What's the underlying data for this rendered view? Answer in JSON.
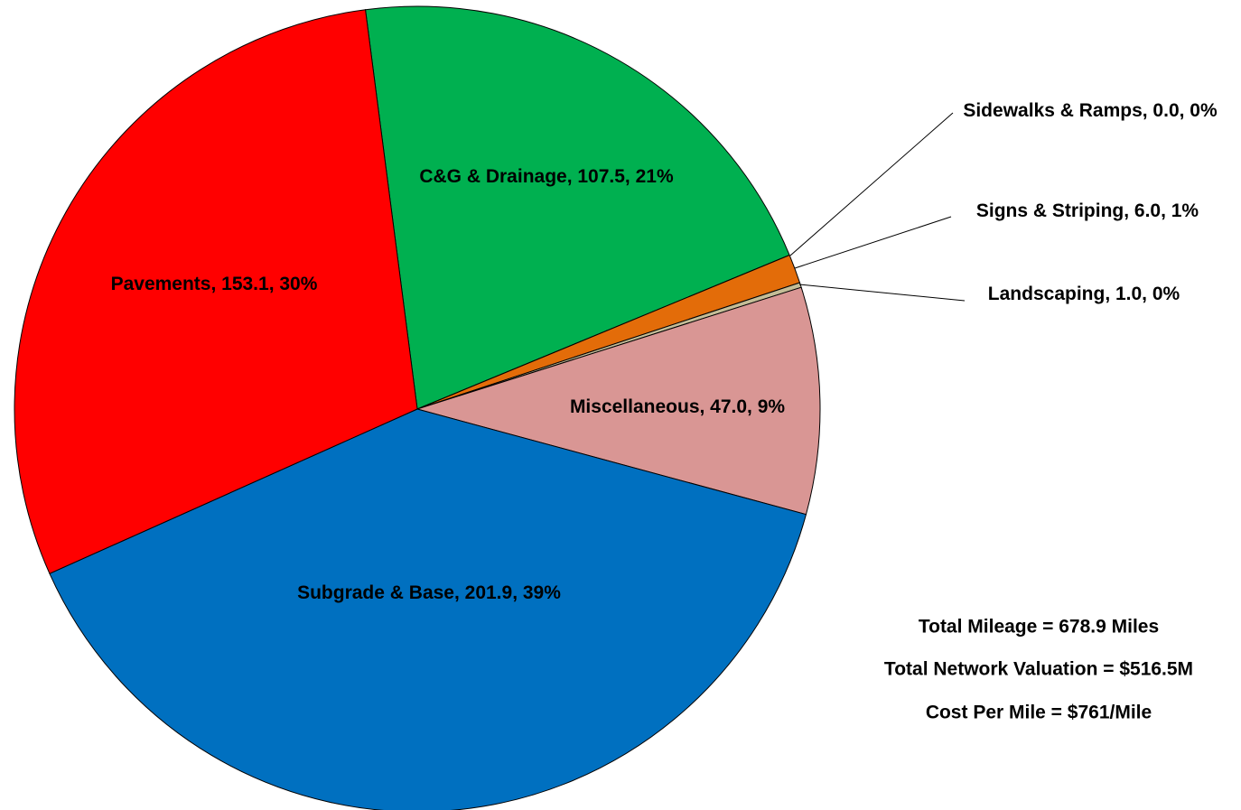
{
  "chart_data": {
    "type": "pie",
    "data_labels": [
      "C&G & Drainage, 107.5, 21%",
      "Sidewalks & Ramps, 0.0, 0%",
      "Signs & Striping, 6.0, 1%",
      "Landscaping, 1.0, 0%",
      "Miscellaneous, 47.0, 9%",
      "Subgrade & Base, 201.9, 39%",
      "Pavements, 153.1, 30%"
    ],
    "values": [
      107.5,
      0,
      6,
      1,
      47,
      201.9,
      153.1
    ],
    "colors": [
      "#00b050",
      "#7030a0",
      "#e36c09",
      "#c4bd97",
      "#d99694",
      "#0070c0",
      "#ff0000"
    ],
    "annotations": [
      "Total Mileage = 678.9 Miles",
      "Total Network Valuation = $516.5M",
      "Cost Per Mile = $761/Mile"
    ]
  }
}
